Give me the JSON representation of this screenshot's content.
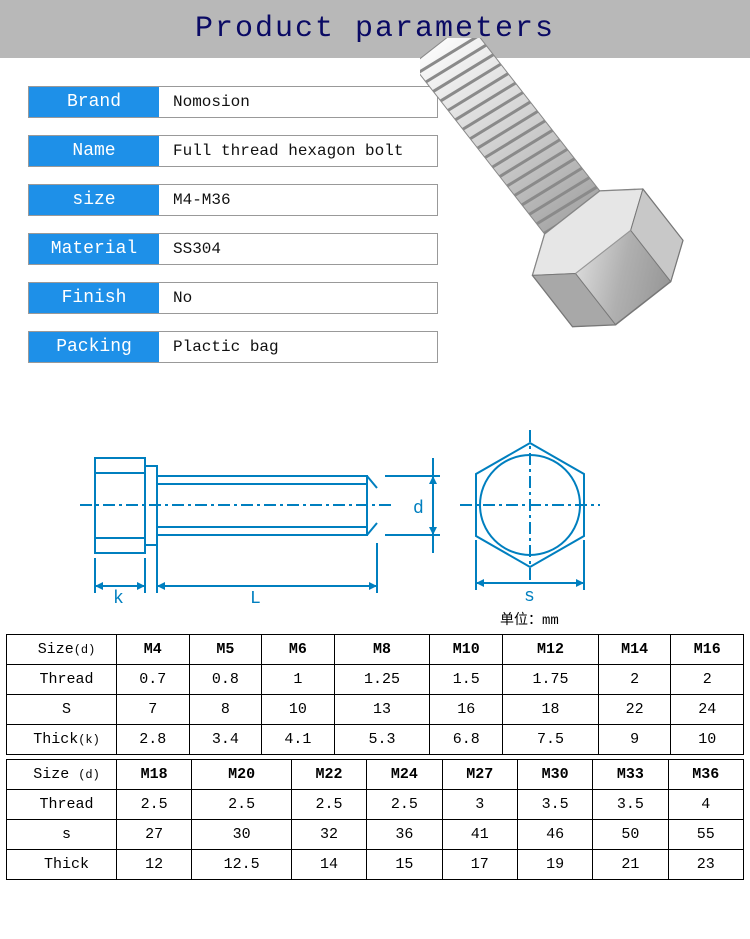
{
  "header": {
    "title": "Product parameters",
    "bg_color": "#b8b8b8",
    "text_color": "#0a0a64"
  },
  "specs": {
    "label_bg": "#1e90e8",
    "rows": [
      {
        "label": "Brand",
        "value": "Nomosion"
      },
      {
        "label": "Name",
        "value": "Full thread hexagon bolt"
      },
      {
        "label": "size",
        "value": "M4-M36"
      },
      {
        "label": "Material",
        "value": "SS304"
      },
      {
        "label": "Finish",
        "value": "No"
      },
      {
        "label": "Packing",
        "value": "Plactic bag"
      }
    ]
  },
  "diagram": {
    "labels": {
      "k": "k",
      "L": "L",
      "d": "d",
      "s": "s"
    },
    "unit_text": "单位：mm",
    "stroke": "#007fbf"
  },
  "tables": {
    "row_headers_1": [
      "Size(d)",
      "Thread",
      "S",
      "Thick(k)"
    ],
    "row_headers_2": [
      "Size (d)",
      "Thread",
      "s",
      "Thick"
    ],
    "group1": {
      "sizes": [
        "M4",
        "M5",
        "M6",
        "M8",
        "M10",
        "M12",
        "M14",
        "M16"
      ],
      "thread": [
        "0.7",
        "0.8",
        "1",
        "1.25",
        "1.5",
        "1.75",
        "2",
        "2"
      ],
      "s": [
        "7",
        "8",
        "10",
        "13",
        "16",
        "18",
        "22",
        "24"
      ],
      "thick": [
        "2.8",
        "3.4",
        "4.1",
        "5.3",
        "6.8",
        "7.5",
        "9",
        "10"
      ]
    },
    "group2": {
      "sizes": [
        "M18",
        "M20",
        "M22",
        "M24",
        "M27",
        "M30",
        "M33",
        "M36"
      ],
      "thread": [
        "2.5",
        "2.5",
        "2.5",
        "2.5",
        "3",
        "3.5",
        "3.5",
        "4"
      ],
      "s": [
        "27",
        "30",
        "32",
        "36",
        "41",
        "46",
        "50",
        "55"
      ],
      "thick": [
        "12",
        "12.5",
        "14",
        "15",
        "17",
        "19",
        "21",
        "23"
      ]
    }
  },
  "bolt_render": {
    "metal_light": "#e8e8e8",
    "metal_mid": "#c4c4c4",
    "metal_dark": "#9a9a9a",
    "metal_shadow": "#707070"
  }
}
